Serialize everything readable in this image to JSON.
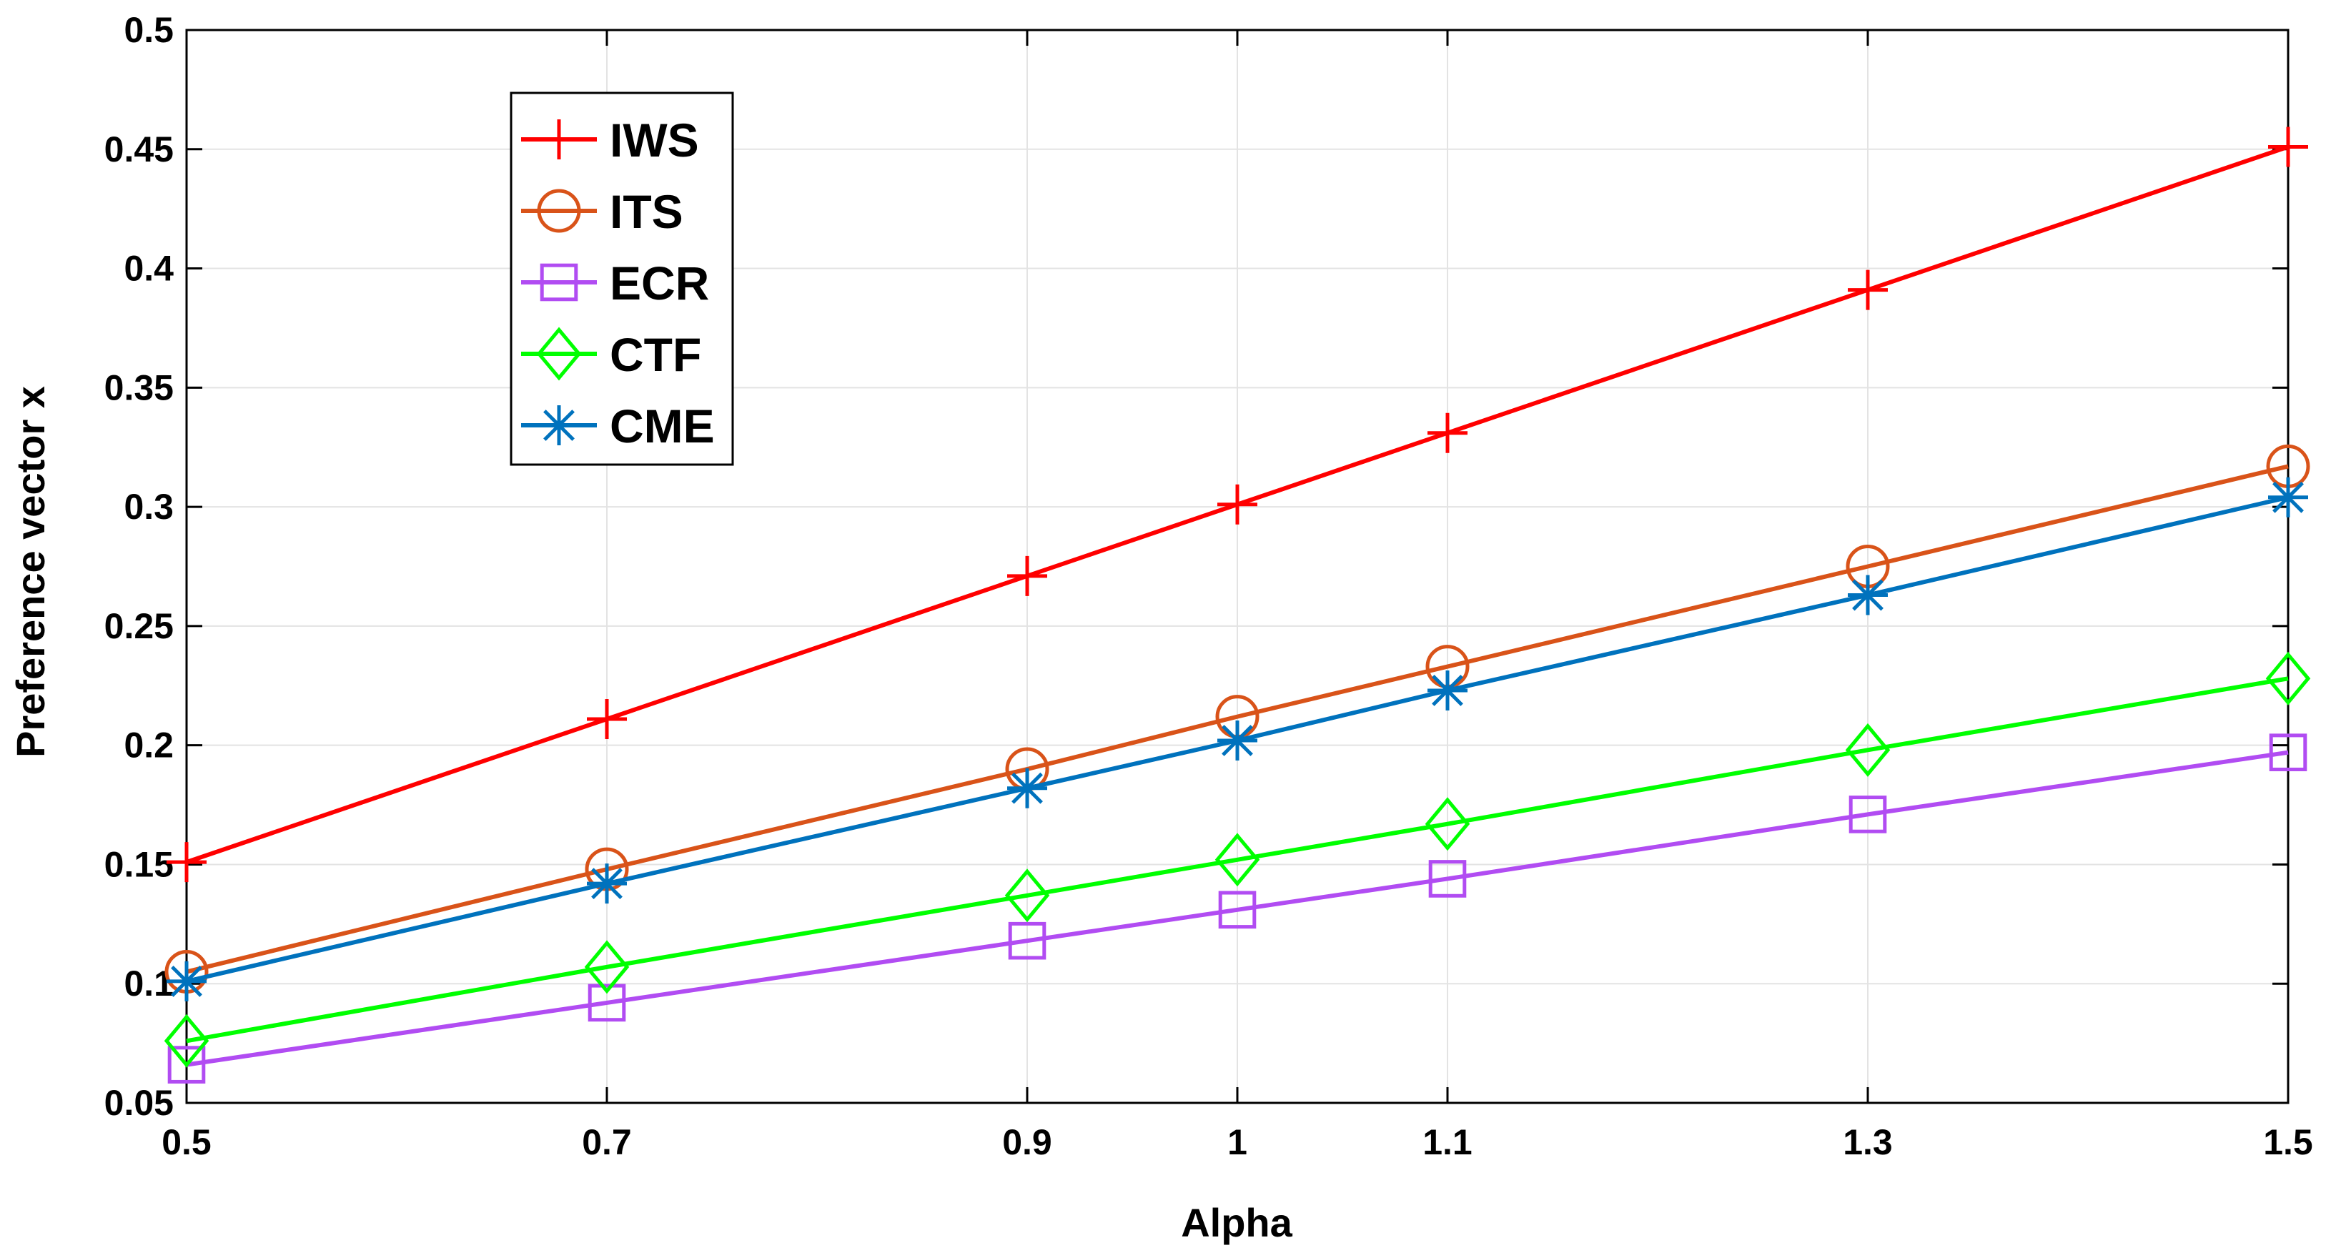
{
  "chart_data": {
    "type": "line",
    "title": "",
    "xlabel": "Alpha",
    "ylabel": "Preference vector x",
    "x": [
      0.5,
      0.7,
      0.9,
      1.0,
      1.1,
      1.3,
      1.5
    ],
    "x_tick_labels": [
      "0.5",
      "0.7",
      "0.9",
      "1",
      "1.1",
      "1.3",
      "1.5"
    ],
    "xlim": [
      0.5,
      1.5
    ],
    "ylim": [
      0.05,
      0.5
    ],
    "y_ticks": [
      0.05,
      0.1,
      0.15,
      0.2,
      0.25,
      0.3,
      0.35,
      0.4,
      0.45,
      0.5
    ],
    "y_tick_labels": [
      "0.05",
      "0.1",
      "0.15",
      "0.2",
      "0.25",
      "0.3",
      "0.35",
      "0.4",
      "0.45",
      "0.5"
    ],
    "grid": true,
    "legend_position": "top-left",
    "series": [
      {
        "name": "IWS",
        "color": "#ff0000",
        "marker": "plus",
        "values": [
          0.151,
          0.211,
          0.271,
          0.301,
          0.331,
          0.391,
          0.451
        ]
      },
      {
        "name": "ITS",
        "color": "#d95319",
        "marker": "circle",
        "values": [
          0.105,
          0.148,
          0.19,
          0.212,
          0.233,
          0.275,
          0.317
        ]
      },
      {
        "name": "ECR",
        "color": "#b14cf2",
        "marker": "square",
        "values": [
          0.066,
          0.092,
          0.118,
          0.131,
          0.144,
          0.171,
          0.197
        ]
      },
      {
        "name": "CTF",
        "color": "#00ff00",
        "marker": "diamond",
        "values": [
          0.076,
          0.107,
          0.137,
          0.152,
          0.167,
          0.198,
          0.228
        ]
      },
      {
        "name": "CME",
        "color": "#0072bd",
        "marker": "asterisk",
        "values": [
          0.101,
          0.142,
          0.182,
          0.202,
          0.223,
          0.263,
          0.304
        ]
      }
    ]
  }
}
